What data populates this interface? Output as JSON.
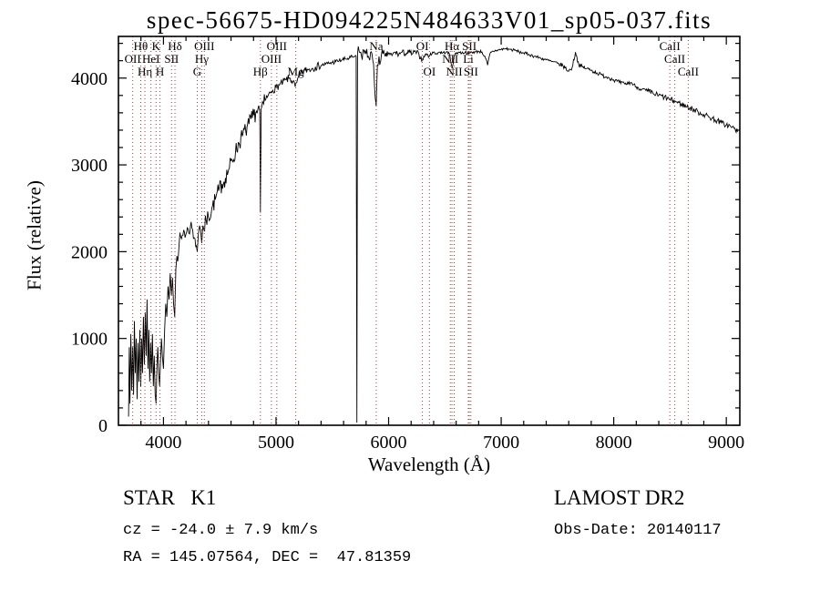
{
  "chart_data": {
    "type": "line",
    "title": "spec-56675-HD094225N484633V01_sp05-037.fits",
    "xlabel": "Wavelength (Å)",
    "ylabel": "Flux (relative)",
    "xlim": [
      3600,
      9120
    ],
    "ylim": [
      0,
      4480
    ],
    "xticks": [
      4000,
      5000,
      6000,
      7000,
      8000,
      9000
    ],
    "yticks": [
      0,
      1000,
      2000,
      3000,
      4000
    ],
    "x_minor_step": 200,
    "y_minor_step": 200,
    "grid": false,
    "legend": "none",
    "line_color": "#000000",
    "marker_color": "#a33b3b",
    "label_row_y": [
      55,
      69,
      83
    ],
    "noise_seed": 7,
    "sample_step": 6,
    "spectral_lines": [
      {
        "wavelength": 3727,
        "label": "OII",
        "row": 1
      },
      {
        "wavelength": 3798,
        "label": "Hθ",
        "row": 0
      },
      {
        "wavelength": 3835,
        "label": "Hη",
        "row": 2
      },
      {
        "wavelength": 3889,
        "label": "HeI",
        "row": 1
      },
      {
        "wavelength": 3934,
        "label": "K",
        "row": 0
      },
      {
        "wavelength": 3969,
        "label": "H",
        "row": 2
      },
      {
        "wavelength": 4072,
        "label": "SII",
        "row": 1
      },
      {
        "wavelength": 4102,
        "label": "Hδ",
        "row": 0
      },
      {
        "wavelength": 4300,
        "label": "G",
        "row": 2
      },
      {
        "wavelength": 4340,
        "label": "Hγ",
        "row": 1
      },
      {
        "wavelength": 4363,
        "label": "OIII",
        "row": 0
      },
      {
        "wavelength": 4861,
        "label": "Hβ",
        "row": 2
      },
      {
        "wavelength": 4959,
        "label": "OIII",
        "row": 1
      },
      {
        "wavelength": 5007,
        "label": "OIII",
        "row": 0
      },
      {
        "wavelength": 5175,
        "label": "Mg",
        "row": 2
      },
      {
        "wavelength": 5890,
        "label": "Na",
        "row": 0
      },
      {
        "wavelength": 6300,
        "label": "OI",
        "row": 0
      },
      {
        "wavelength": 6363,
        "label": "OI",
        "row": 2
      },
      {
        "wavelength": 6548,
        "label": "NII",
        "row": 1
      },
      {
        "wavelength": 6563,
        "label": "Hα",
        "row": 0
      },
      {
        "wavelength": 6583,
        "label": "NII",
        "row": 2
      },
      {
        "wavelength": 6708,
        "label": "Li",
        "row": 1
      },
      {
        "wavelength": 6717,
        "label": "SII",
        "row": 0
      },
      {
        "wavelength": 6731,
        "label": "SII",
        "row": 2
      },
      {
        "wavelength": 8498,
        "label": "CaII",
        "row": 0
      },
      {
        "wavelength": 8542,
        "label": "CaII",
        "row": 1
      },
      {
        "wavelength": 8662,
        "label": "CaII",
        "row": 2
      }
    ],
    "noise_segments": [
      {
        "from": 3600,
        "to": 4100,
        "amp": 230
      },
      {
        "from": 4100,
        "to": 4400,
        "amp": 110
      },
      {
        "from": 4400,
        "to": 4900,
        "amp": 100
      },
      {
        "from": 4900,
        "to": 5400,
        "amp": 45
      },
      {
        "from": 5400,
        "to": 5712,
        "amp": 28
      },
      {
        "from": 5712,
        "to": 5726,
        "amp": 0
      },
      {
        "from": 5726,
        "to": 5960,
        "amp": 90
      },
      {
        "from": 5960,
        "to": 6300,
        "amp": 35
      },
      {
        "from": 6300,
        "to": 7500,
        "amp": 18
      },
      {
        "from": 7500,
        "to": 8300,
        "amp": 24
      },
      {
        "from": 8300,
        "to": 9110,
        "amp": 34
      }
    ],
    "spectrum_anchors": [
      [
        3690,
        100
      ],
      [
        3696,
        900
      ],
      [
        3702,
        250
      ],
      [
        3710,
        1050
      ],
      [
        3718,
        400
      ],
      [
        3726,
        900
      ],
      [
        3734,
        350
      ],
      [
        3742,
        1200
      ],
      [
        3750,
        600
      ],
      [
        3758,
        1000
      ],
      [
        3766,
        300
      ],
      [
        3774,
        950
      ],
      [
        3782,
        500
      ],
      [
        3790,
        1100
      ],
      [
        3798,
        450
      ],
      [
        3806,
        1000
      ],
      [
        3814,
        600
      ],
      [
        3822,
        1250
      ],
      [
        3830,
        700
      ],
      [
        3838,
        1300
      ],
      [
        3846,
        800
      ],
      [
        3854,
        1450
      ],
      [
        3862,
        650
      ],
      [
        3870,
        1100
      ],
      [
        3878,
        500
      ],
      [
        3886,
        950
      ],
      [
        3894,
        600
      ],
      [
        3902,
        1050
      ],
      [
        3910,
        450
      ],
      [
        3918,
        800
      ],
      [
        3926,
        350
      ],
      [
        3934,
        250
      ],
      [
        3942,
        700
      ],
      [
        3950,
        900
      ],
      [
        3958,
        600
      ],
      [
        3966,
        450
      ],
      [
        3974,
        750
      ],
      [
        3982,
        1000
      ],
      [
        3990,
        800
      ],
      [
        4000,
        650
      ],
      [
        4010,
        1100
      ],
      [
        4020,
        1400
      ],
      [
        4030,
        1250
      ],
      [
        4040,
        1600
      ],
      [
        4050,
        1450
      ],
      [
        4060,
        1750
      ],
      [
        4070,
        1500
      ],
      [
        4080,
        1700
      ],
      [
        4090,
        1400
      ],
      [
        4100,
        1250
      ],
      [
        4110,
        1800
      ],
      [
        4120,
        1950
      ],
      [
        4140,
        2100
      ],
      [
        4160,
        2150
      ],
      [
        4180,
        2250
      ],
      [
        4200,
        2200
      ],
      [
        4220,
        2250
      ],
      [
        4240,
        2300
      ],
      [
        4260,
        2250
      ],
      [
        4280,
        2150
      ],
      [
        4300,
        2000
      ],
      [
        4310,
        2200
      ],
      [
        4320,
        2300
      ],
      [
        4330,
        2250
      ],
      [
        4340,
        2100
      ],
      [
        4350,
        2300
      ],
      [
        4360,
        2250
      ],
      [
        4380,
        2350
      ],
      [
        4400,
        2400
      ],
      [
        4430,
        2500
      ],
      [
        4460,
        2600
      ],
      [
        4490,
        2700
      ],
      [
        4520,
        2780
      ],
      [
        4550,
        2850
      ],
      [
        4580,
        2950
      ],
      [
        4610,
        3050
      ],
      [
        4640,
        3150
      ],
      [
        4670,
        3250
      ],
      [
        4700,
        3330
      ],
      [
        4730,
        3400
      ],
      [
        4760,
        3470
      ],
      [
        4790,
        3540
      ],
      [
        4820,
        3600
      ],
      [
        4840,
        3650
      ],
      [
        4855,
        3620
      ],
      [
        4861,
        2450
      ],
      [
        4868,
        3650
      ],
      [
        4890,
        3700
      ],
      [
        4910,
        3760
      ],
      [
        4930,
        3800
      ],
      [
        4950,
        3830
      ],
      [
        4970,
        3860
      ],
      [
        5000,
        3890
      ],
      [
        5030,
        3920
      ],
      [
        5060,
        3950
      ],
      [
        5090,
        3980
      ],
      [
        5120,
        4000
      ],
      [
        5150,
        3960
      ],
      [
        5170,
        3900
      ],
      [
        5185,
        3950
      ],
      [
        5200,
        4020
      ],
      [
        5230,
        4060
      ],
      [
        5260,
        4090
      ],
      [
        5290,
        4100
      ],
      [
        5320,
        4110
      ],
      [
        5350,
        4130
      ],
      [
        5380,
        4140
      ],
      [
        5410,
        4150
      ],
      [
        5440,
        4160
      ],
      [
        5470,
        4170
      ],
      [
        5500,
        4180
      ],
      [
        5530,
        4190
      ],
      [
        5560,
        4200
      ],
      [
        5590,
        4210
      ],
      [
        5620,
        4220
      ],
      [
        5650,
        4230
      ],
      [
        5680,
        4240
      ],
      [
        5700,
        4250
      ],
      [
        5712,
        4250
      ],
      [
        5718,
        30
      ],
      [
        5724,
        4280
      ],
      [
        5740,
        4300
      ],
      [
        5760,
        4250
      ],
      [
        5780,
        4320
      ],
      [
        5800,
        4280
      ],
      [
        5820,
        4250
      ],
      [
        5840,
        4300
      ],
      [
        5860,
        4200
      ],
      [
        5875,
        3900
      ],
      [
        5890,
        3680
      ],
      [
        5900,
        4150
      ],
      [
        5915,
        4250
      ],
      [
        5930,
        4200
      ],
      [
        5950,
        4280
      ],
      [
        5970,
        4250
      ],
      [
        6000,
        4290
      ],
      [
        6030,
        4260
      ],
      [
        6060,
        4300
      ],
      [
        6090,
        4270
      ],
      [
        6120,
        4300
      ],
      [
        6150,
        4280
      ],
      [
        6180,
        4300
      ],
      [
        6210,
        4280
      ],
      [
        6240,
        4300
      ],
      [
        6270,
        4270
      ],
      [
        6300,
        4210
      ],
      [
        6330,
        4280
      ],
      [
        6360,
        4250
      ],
      [
        6390,
        4300
      ],
      [
        6420,
        4280
      ],
      [
        6450,
        4300
      ],
      [
        6480,
        4290
      ],
      [
        6510,
        4300
      ],
      [
        6540,
        4280
      ],
      [
        6563,
        4120
      ],
      [
        6590,
        4280
      ],
      [
        6620,
        4300
      ],
      [
        6650,
        4290
      ],
      [
        6680,
        4300
      ],
      [
        6710,
        4280
      ],
      [
        6740,
        4300
      ],
      [
        6770,
        4300
      ],
      [
        6800,
        4310
      ],
      [
        6830,
        4300
      ],
      [
        6860,
        4230
      ],
      [
        6880,
        4150
      ],
      [
        6900,
        4280
      ],
      [
        6930,
        4310
      ],
      [
        6960,
        4320
      ],
      [
        7000,
        4330
      ],
      [
        7040,
        4340
      ],
      [
        7080,
        4330
      ],
      [
        7120,
        4320
      ],
      [
        7160,
        4300
      ],
      [
        7200,
        4290
      ],
      [
        7250,
        4270
      ],
      [
        7300,
        4250
      ],
      [
        7350,
        4230
      ],
      [
        7400,
        4210
      ],
      [
        7450,
        4190
      ],
      [
        7500,
        4170
      ],
      [
        7550,
        4140
      ],
      [
        7600,
        4080
      ],
      [
        7630,
        4120
      ],
      [
        7660,
        4300
      ],
      [
        7690,
        4150
      ],
      [
        7720,
        4130
      ],
      [
        7760,
        4110
      ],
      [
        7800,
        4090
      ],
      [
        7850,
        4060
      ],
      [
        7900,
        4030
      ],
      [
        7950,
        4010
      ],
      [
        8000,
        3980
      ],
      [
        8050,
        3950
      ],
      [
        8100,
        3930
      ],
      [
        8150,
        3950
      ],
      [
        8200,
        3900
      ],
      [
        8250,
        3870
      ],
      [
        8300,
        3850
      ],
      [
        8350,
        3820
      ],
      [
        8400,
        3800
      ],
      [
        8450,
        3780
      ],
      [
        8500,
        3750
      ],
      [
        8550,
        3730
      ],
      [
        8600,
        3700
      ],
      [
        8650,
        3670
      ],
      [
        8700,
        3640
      ],
      [
        8750,
        3610
      ],
      [
        8800,
        3580
      ],
      [
        8850,
        3550
      ],
      [
        8900,
        3520
      ],
      [
        8950,
        3490
      ],
      [
        9000,
        3460
      ],
      [
        9040,
        3440
      ],
      [
        9070,
        3420
      ],
      [
        9100,
        3380
      ]
    ]
  },
  "annotations": {
    "class_line": "STAR   K1",
    "cz_line": "cz = -24.0 ± 7.9 km/s",
    "radec_line": "RA = 145.07564, DEC =  47.81359",
    "survey": "LAMOST DR2",
    "obsdate": "Obs-Date: 20140117"
  }
}
